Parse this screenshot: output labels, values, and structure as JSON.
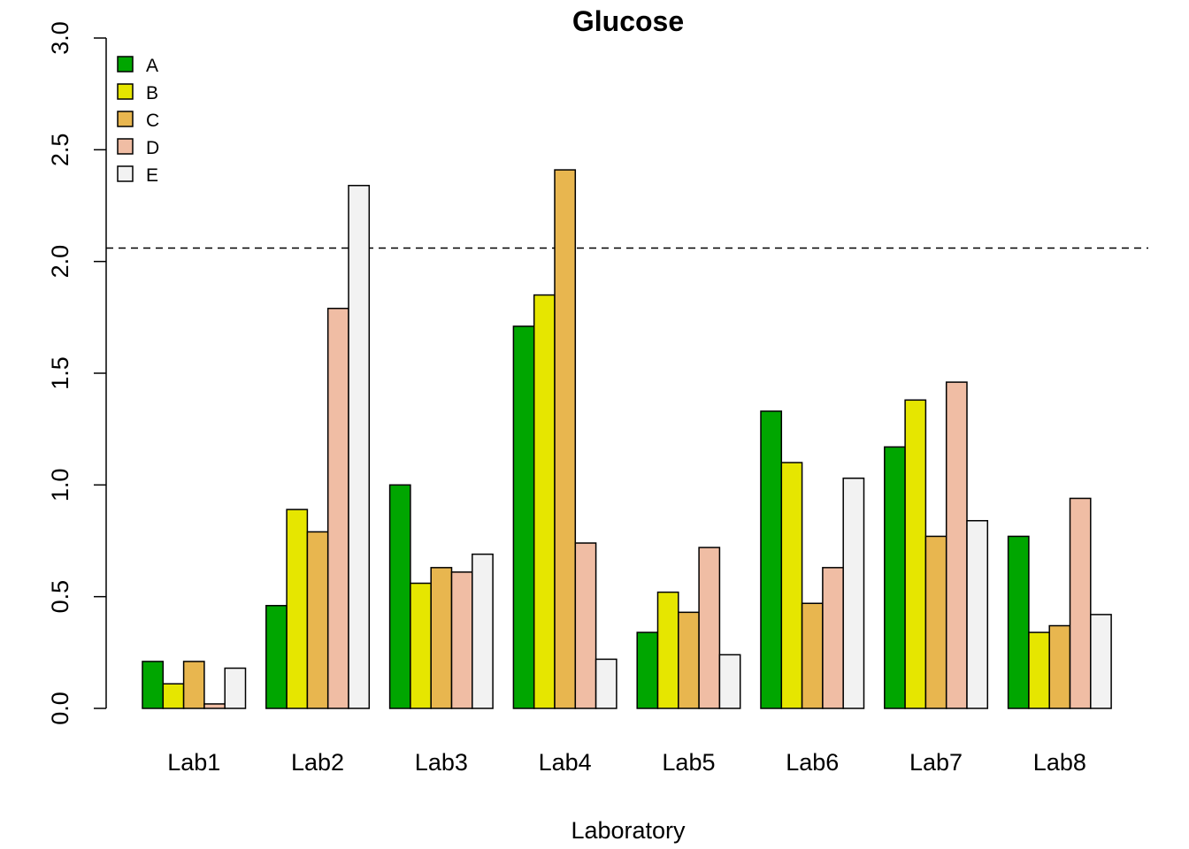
{
  "chart_data": {
    "type": "bar",
    "title": "Glucose",
    "xlabel": "Laboratory",
    "ylabel": "",
    "ylim": [
      0,
      3
    ],
    "yticks": [
      "0.0",
      "0.5",
      "1.0",
      "1.5",
      "2.0",
      "2.5",
      "3.0"
    ],
    "categories": [
      "Lab1",
      "Lab2",
      "Lab3",
      "Lab4",
      "Lab5",
      "Lab6",
      "Lab7",
      "Lab8"
    ],
    "series": [
      {
        "name": "A",
        "color": "#00A600",
        "values": [
          0.21,
          0.46,
          1.0,
          1.71,
          0.34,
          1.33,
          1.17,
          0.77
        ]
      },
      {
        "name": "B",
        "color": "#E6E600",
        "values": [
          0.11,
          0.89,
          0.56,
          1.85,
          0.52,
          1.1,
          1.38,
          0.34
        ]
      },
      {
        "name": "C",
        "color": "#E8B64F",
        "values": [
          0.21,
          0.79,
          0.63,
          2.41,
          0.43,
          0.47,
          0.77,
          0.37
        ]
      },
      {
        "name": "D",
        "color": "#F0BDA4",
        "values": [
          0.02,
          1.79,
          0.61,
          0.74,
          0.72,
          0.63,
          1.46,
          0.94
        ]
      },
      {
        "name": "E",
        "color": "#F2F2F2",
        "values": [
          0.18,
          2.34,
          0.69,
          0.22,
          0.24,
          1.03,
          0.84,
          0.42
        ]
      }
    ],
    "reference_line": {
      "value": 2.06,
      "style": "dashed"
    },
    "legend": {
      "position": "top-left"
    },
    "grid": false
  }
}
